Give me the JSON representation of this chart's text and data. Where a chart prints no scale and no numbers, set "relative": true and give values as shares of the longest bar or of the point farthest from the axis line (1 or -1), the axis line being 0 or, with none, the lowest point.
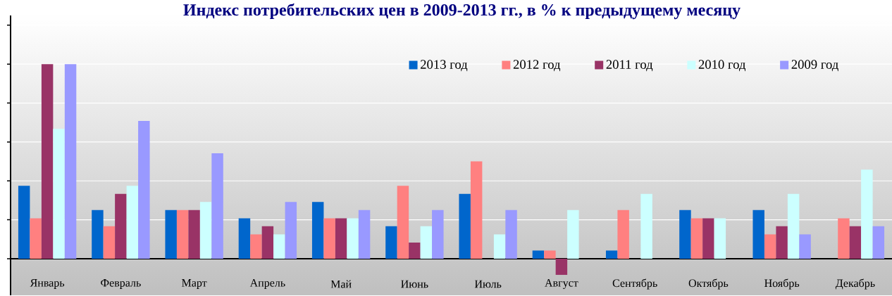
{
  "chart_data": {
    "type": "bar",
    "title": "Индекс потребительских цен в 2009-2013 гг., в % к предыдущему месяцу",
    "categories": [
      "Январь",
      "Февраль",
      "Март",
      "Апрель",
      "Май",
      "Июнь",
      "Июль",
      "Август",
      "Сентябрь",
      "Октябрь",
      "Ноябрь",
      "Декабрь"
    ],
    "series": [
      {
        "name": "2013 год",
        "color": "#0066cc",
        "values": [
          0.375,
          0.25,
          0.25,
          0.208,
          0.292,
          0.167,
          0.333,
          0.042,
          0.042,
          0.25,
          0.25,
          null
        ]
      },
      {
        "name": "2012 год",
        "color": "#ff8080",
        "values": [
          0.208,
          0.167,
          0.25,
          0.125,
          0.208,
          0.375,
          0.5,
          0.042,
          0.25,
          0.208,
          0.125,
          0.208
        ]
      },
      {
        "name": "2011 год",
        "color": "#993366",
        "values": [
          1,
          0.333,
          0.25,
          0.167,
          0.208,
          0.083,
          null,
          -0.083,
          null,
          0.208,
          0.167,
          0.167
        ]
      },
      {
        "name": "2010 год",
        "color": "#ccffff",
        "values": [
          0.667,
          0.375,
          0.292,
          0.125,
          0.208,
          0.167,
          0.125,
          0.25,
          0.333,
          0.208,
          0.333,
          0.458
        ]
      },
      {
        "name": "2009 год",
        "color": "#9999ff",
        "values": [
          1,
          0.708,
          0.542,
          0.292,
          0.25,
          0.25,
          0.25,
          null,
          null,
          null,
          0.125,
          0.167
        ]
      }
    ],
    "relative": true,
    "grid": "y",
    "legend": "top right"
  }
}
